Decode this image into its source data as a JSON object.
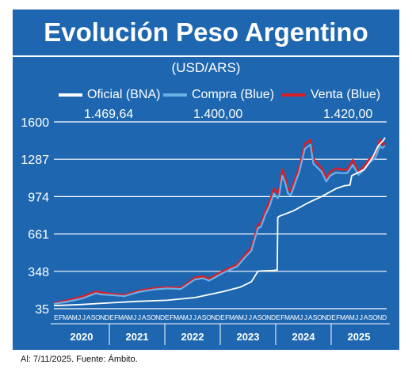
{
  "title": "Evolución Peso Argentino",
  "subtitle": "(USD/ARS)",
  "footer": "Al: 7/11/2025. Fuente: Ámbito.",
  "colors": {
    "frame": "#1e67b0",
    "oficial": "#ffffff",
    "compra": "#6ab0e8",
    "venta": "#d81f26",
    "grid": "#ffffff"
  },
  "chart_data": {
    "type": "line",
    "series": [
      {
        "name": "Oficial (BNA)",
        "last_label": "1.469,64",
        "values": [
          [
            2020.0,
            60
          ],
          [
            2020.5,
            70
          ],
          [
            2021.0,
            84
          ],
          [
            2021.5,
            97
          ],
          [
            2022.0,
            105
          ],
          [
            2022.5,
            128
          ],
          [
            2023.0,
            178
          ],
          [
            2023.3,
            215
          ],
          [
            2023.5,
            260
          ],
          [
            2023.62,
            350
          ],
          [
            2023.9,
            355
          ],
          [
            2023.96,
            360
          ],
          [
            2023.97,
            800
          ],
          [
            2024.0,
            810
          ],
          [
            2024.25,
            855
          ],
          [
            2024.5,
            920
          ],
          [
            2024.75,
            975
          ],
          [
            2025.0,
            1040
          ],
          [
            2025.15,
            1065
          ],
          [
            2025.25,
            1070
          ],
          [
            2025.28,
            1150
          ],
          [
            2025.5,
            1200
          ],
          [
            2025.65,
            1300
          ],
          [
            2025.75,
            1400
          ],
          [
            2025.85,
            1450
          ],
          [
            2025.87,
            1469.64
          ]
        ]
      },
      {
        "name": "Compra (Blue)",
        "last_label": "1.400,00",
        "values": [
          [
            2020.0,
            75
          ],
          [
            2020.25,
            95
          ],
          [
            2020.5,
            120
          ],
          [
            2020.75,
            165
          ],
          [
            2020.83,
            155
          ],
          [
            2021.0,
            150
          ],
          [
            2021.25,
            140
          ],
          [
            2021.5,
            175
          ],
          [
            2021.75,
            195
          ],
          [
            2022.0,
            205
          ],
          [
            2022.25,
            200
          ],
          [
            2022.5,
            280
          ],
          [
            2022.65,
            290
          ],
          [
            2022.75,
            270
          ],
          [
            2023.0,
            335
          ],
          [
            2023.25,
            390
          ],
          [
            2023.4,
            470
          ],
          [
            2023.5,
            520
          ],
          [
            2023.62,
            710
          ],
          [
            2023.67,
            720
          ],
          [
            2023.75,
            820
          ],
          [
            2023.83,
            900
          ],
          [
            2023.9,
            1000
          ],
          [
            2023.97,
            960
          ],
          [
            2024.0,
            1000
          ],
          [
            2024.05,
            1150
          ],
          [
            2024.1,
            1090
          ],
          [
            2024.15,
            1000
          ],
          [
            2024.2,
            985
          ],
          [
            2024.35,
            1180
          ],
          [
            2024.45,
            1375
          ],
          [
            2024.55,
            1410
          ],
          [
            2024.6,
            1250
          ],
          [
            2024.75,
            1180
          ],
          [
            2024.83,
            1100
          ],
          [
            2024.9,
            1150
          ],
          [
            2025.0,
            1175
          ],
          [
            2025.1,
            1170
          ],
          [
            2025.2,
            1170
          ],
          [
            2025.3,
            1240
          ],
          [
            2025.4,
            1155
          ],
          [
            2025.5,
            1200
          ],
          [
            2025.6,
            1260
          ],
          [
            2025.7,
            1300
          ],
          [
            2025.78,
            1400
          ],
          [
            2025.82,
            1380
          ],
          [
            2025.87,
            1400
          ]
        ]
      },
      {
        "name": "Venta (Blue)",
        "last_label": "1.420,00",
        "values": [
          [
            2020.0,
            80
          ],
          [
            2020.25,
            105
          ],
          [
            2020.5,
            135
          ],
          [
            2020.75,
            180
          ],
          [
            2020.83,
            170
          ],
          [
            2021.0,
            160
          ],
          [
            2021.25,
            150
          ],
          [
            2021.5,
            185
          ],
          [
            2021.75,
            205
          ],
          [
            2022.0,
            215
          ],
          [
            2022.25,
            210
          ],
          [
            2022.5,
            295
          ],
          [
            2022.65,
            305
          ],
          [
            2022.75,
            285
          ],
          [
            2023.0,
            350
          ],
          [
            2023.25,
            405
          ],
          [
            2023.4,
            490
          ],
          [
            2023.5,
            545
          ],
          [
            2023.62,
            740
          ],
          [
            2023.67,
            750
          ],
          [
            2023.75,
            850
          ],
          [
            2023.83,
            940
          ],
          [
            2023.9,
            1040
          ],
          [
            2023.97,
            1000
          ],
          [
            2024.0,
            1040
          ],
          [
            2024.05,
            1200
          ],
          [
            2024.1,
            1130
          ],
          [
            2024.15,
            1040
          ],
          [
            2024.2,
            1020
          ],
          [
            2024.35,
            1220
          ],
          [
            2024.45,
            1415
          ],
          [
            2024.55,
            1450
          ],
          [
            2024.6,
            1290
          ],
          [
            2024.75,
            1210
          ],
          [
            2024.83,
            1130
          ],
          [
            2024.9,
            1180
          ],
          [
            2025.0,
            1210
          ],
          [
            2025.1,
            1200
          ],
          [
            2025.2,
            1200
          ],
          [
            2025.3,
            1280
          ],
          [
            2025.4,
            1180
          ],
          [
            2025.5,
            1230
          ],
          [
            2025.6,
            1290
          ],
          [
            2025.7,
            1330
          ],
          [
            2025.78,
            1450
          ],
          [
            2025.82,
            1410
          ],
          [
            2025.87,
            1420
          ]
        ]
      }
    ],
    "y_ticks": [
      "35",
      "348",
      "661",
      "974",
      "1287",
      "1600"
    ],
    "ylim": [
      35,
      1600
    ],
    "xlim": [
      2020.0,
      2025.9
    ],
    "month_letters": [
      "E",
      "F",
      "M",
      "A",
      "M",
      "J",
      "J",
      "A",
      "S",
      "O",
      "N",
      "D"
    ],
    "years": [
      "2020",
      "2021",
      "2022",
      "2023",
      "2024",
      "2025"
    ],
    "grid": true
  }
}
